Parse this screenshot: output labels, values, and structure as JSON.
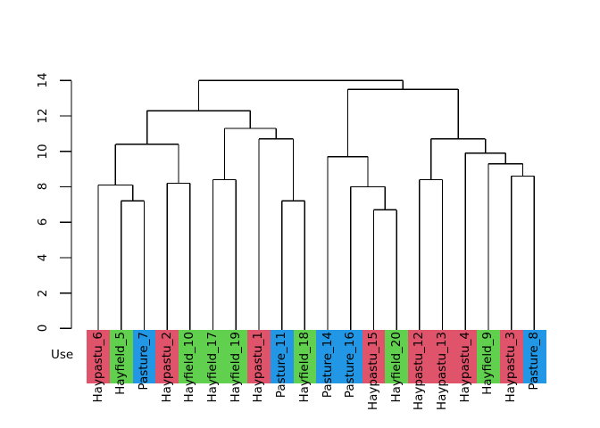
{
  "chart_data": {
    "type": "dendrogram",
    "title": "",
    "band_label": "Use",
    "yticks": [
      0,
      2,
      4,
      6,
      8,
      10,
      12,
      14
    ],
    "ylim": [
      0,
      14
    ],
    "grid": false,
    "palette": {
      "red": "#DF536B",
      "green": "#61D04F",
      "blue": "#2297E6"
    },
    "line_color": "#000000",
    "leaves": [
      {
        "label": "Haypastu_6",
        "group": "red"
      },
      {
        "label": "Hayfield_5",
        "group": "green"
      },
      {
        "label": "Pasture_7",
        "group": "blue"
      },
      {
        "label": "Haypastu_2",
        "group": "red"
      },
      {
        "label": "Hayfield_10",
        "group": "green"
      },
      {
        "label": "Hayfield_17",
        "group": "green"
      },
      {
        "label": "Hayfield_19",
        "group": "green"
      },
      {
        "label": "Haypastu_1",
        "group": "red"
      },
      {
        "label": "Pasture_11",
        "group": "blue"
      },
      {
        "label": "Hayfield_18",
        "group": "green"
      },
      {
        "label": "Pasture_14",
        "group": "blue"
      },
      {
        "label": "Pasture_16",
        "group": "blue"
      },
      {
        "label": "Haypastu_15",
        "group": "red"
      },
      {
        "label": "Hayfield_20",
        "group": "green"
      },
      {
        "label": "Haypastu_12",
        "group": "red"
      },
      {
        "label": "Haypastu_13",
        "group": "red"
      },
      {
        "label": "Haypastu_4",
        "group": "red"
      },
      {
        "label": "Hayfield_9",
        "group": "green"
      },
      {
        "label": "Haypastu_3",
        "group": "red"
      },
      {
        "label": "Pasture_8",
        "group": "blue"
      }
    ],
    "tree": {
      "h": 14.0,
      "c": [
        {
          "h": 12.3,
          "c": [
            {
              "h": 10.4,
              "c": [
                {
                  "h": 8.1,
                  "c": [
                    1,
                    {
                      "h": 7.2,
                      "c": [
                        2,
                        3
                      ]
                    }
                  ]
                },
                {
                  "h": 8.2,
                  "c": [
                    4,
                    5
                  ]
                }
              ]
            },
            {
              "h": 11.3,
              "c": [
                {
                  "h": 8.4,
                  "c": [
                    6,
                    7
                  ]
                },
                {
                  "h": 10.7,
                  "c": [
                    8,
                    {
                      "h": 7.2,
                      "c": [
                        9,
                        10
                      ]
                    }
                  ]
                }
              ]
            }
          ]
        },
        {
          "h": 13.5,
          "c": [
            {
              "h": 9.7,
              "c": [
                11,
                {
                  "h": 8.0,
                  "c": [
                    12,
                    {
                      "h": 6.7,
                      "c": [
                        13,
                        14
                      ]
                    }
                  ]
                }
              ]
            },
            {
              "h": 10.7,
              "c": [
                {
                  "h": 8.4,
                  "c": [
                    15,
                    16
                  ]
                },
                {
                  "h": 9.9,
                  "c": [
                    17,
                    {
                      "h": 9.3,
                      "c": [
                        18,
                        {
                          "h": 8.6,
                          "c": [
                            19,
                            20
                          ]
                        }
                      ]
                    }
                  ]
                }
              ]
            }
          ]
        }
      ]
    }
  }
}
